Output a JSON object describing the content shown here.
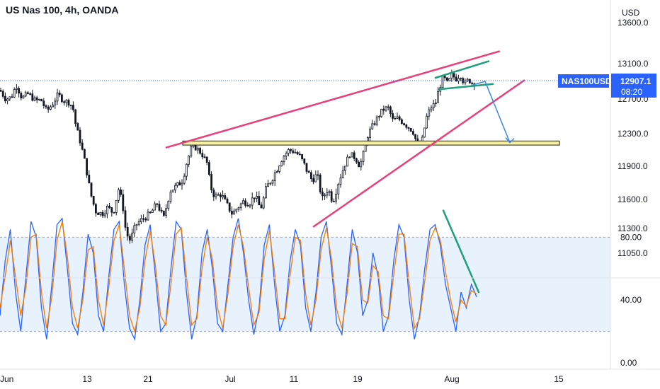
{
  "header": {
    "title": "US Nas 100, 4h, OANDA"
  },
  "colors": {
    "candle": "#131722",
    "trend_line": "#e9407a",
    "flag_line": "#1e9e7a",
    "projection": "#3d85e6",
    "zone_fill": "#f7f0a0",
    "zone_stroke": "#1a1a1a",
    "stoch_k": "#2962ff",
    "stoch_d": "#f57c00",
    "stoch_band": "#e8f2fc",
    "price_tag": "#2962ff",
    "time_tag": "#ffffff"
  },
  "icons": {
    "projection-arrowhead": "chevron-down-icon"
  },
  "price_axis": {
    "currency": "USD",
    "labels": [
      "13600.0",
      "13100.0",
      "12700.0",
      "12300.0",
      "11900.0",
      "11600.0",
      "11300.0",
      "11050.0"
    ]
  },
  "price_tag": {
    "symbol": "NAS100USD",
    "price": "12907.1",
    "countdown": "08:20"
  },
  "stoch_axis": {
    "labels": [
      "80.00",
      "40.00",
      "0.00"
    ]
  },
  "time_axis": {
    "labels": [
      "Jun",
      "13",
      "21",
      "Jul",
      "11",
      "19",
      "Aug",
      "15"
    ]
  },
  "chart_data": [
    {
      "type": "candlestick",
      "title": "US Nas 100, 4h, OANDA",
      "symbol": "NAS100USD",
      "timeframe": "4h",
      "source": "OANDA",
      "y_unit": "USD",
      "ylim": [
        10900,
        13700
      ],
      "y_ticks": [
        11050,
        11300,
        11600,
        11900,
        12300,
        12700,
        13100,
        13600
      ],
      "x_ticks": [
        "Jun",
        "13",
        "21",
        "Jul",
        "11",
        "19",
        "Aug",
        "15"
      ],
      "last_price": 12907.1,
      "close_path": [
        {
          "t": 0,
          "p": 12800
        },
        {
          "t": 8,
          "p": 12700
        },
        {
          "t": 16,
          "p": 12720
        },
        {
          "t": 23,
          "p": 12860
        },
        {
          "t": 31,
          "p": 12710
        },
        {
          "t": 40,
          "p": 12760
        },
        {
          "t": 50,
          "p": 12680
        },
        {
          "t": 58,
          "p": 12690
        },
        {
          "t": 66,
          "p": 12560
        },
        {
          "t": 74,
          "p": 12640
        },
        {
          "t": 82,
          "p": 12750
        },
        {
          "t": 90,
          "p": 12680
        },
        {
          "t": 98,
          "p": 12660
        },
        {
          "t": 103,
          "p": 12600
        },
        {
          "t": 107,
          "p": 12400
        },
        {
          "t": 114,
          "p": 12180
        },
        {
          "t": 120,
          "p": 11950
        },
        {
          "t": 127,
          "p": 11680
        },
        {
          "t": 135,
          "p": 11480
        },
        {
          "t": 144,
          "p": 11450
        },
        {
          "t": 152,
          "p": 11520
        },
        {
          "t": 160,
          "p": 11460
        },
        {
          "t": 167,
          "p": 11700
        },
        {
          "t": 173,
          "p": 11560
        },
        {
          "t": 178,
          "p": 11250
        },
        {
          "t": 184,
          "p": 11180
        },
        {
          "t": 192,
          "p": 11340
        },
        {
          "t": 202,
          "p": 11400
        },
        {
          "t": 212,
          "p": 11450
        },
        {
          "t": 222,
          "p": 11560
        },
        {
          "t": 231,
          "p": 11400
        },
        {
          "t": 240,
          "p": 11680
        },
        {
          "t": 250,
          "p": 11720
        },
        {
          "t": 258,
          "p": 11780
        },
        {
          "t": 265,
          "p": 11980
        },
        {
          "t": 271,
          "p": 12150
        },
        {
          "t": 278,
          "p": 12120
        },
        {
          "t": 285,
          "p": 12050
        },
        {
          "t": 292,
          "p": 11950
        },
        {
          "t": 297,
          "p": 11720
        },
        {
          "t": 304,
          "p": 11620
        },
        {
          "t": 312,
          "p": 11650
        },
        {
          "t": 320,
          "p": 11550
        },
        {
          "t": 328,
          "p": 11450
        },
        {
          "t": 336,
          "p": 11520
        },
        {
          "t": 344,
          "p": 11580
        },
        {
          "t": 352,
          "p": 11560
        },
        {
          "t": 360,
          "p": 11640
        },
        {
          "t": 368,
          "p": 11500
        },
        {
          "t": 376,
          "p": 11700
        },
        {
          "t": 385,
          "p": 11800
        },
        {
          "t": 393,
          "p": 11900
        },
        {
          "t": 400,
          "p": 12020
        },
        {
          "t": 408,
          "p": 12100
        },
        {
          "t": 416,
          "p": 12080
        },
        {
          "t": 424,
          "p": 12020
        },
        {
          "t": 432,
          "p": 11880
        },
        {
          "t": 440,
          "p": 11780
        },
        {
          "t": 448,
          "p": 11820
        },
        {
          "t": 455,
          "p": 11600
        },
        {
          "t": 463,
          "p": 11700
        },
        {
          "t": 470,
          "p": 11580
        },
        {
          "t": 478,
          "p": 11760
        },
        {
          "t": 486,
          "p": 11900
        },
        {
          "t": 494,
          "p": 12050
        },
        {
          "t": 502,
          "p": 12000
        },
        {
          "t": 508,
          "p": 11900
        },
        {
          "t": 514,
          "p": 12080
        },
        {
          "t": 520,
          "p": 12300
        },
        {
          "t": 527,
          "p": 12400
        },
        {
          "t": 534,
          "p": 12500
        },
        {
          "t": 541,
          "p": 12580
        },
        {
          "t": 548,
          "p": 12600
        },
        {
          "t": 555,
          "p": 12450
        },
        {
          "t": 562,
          "p": 12480
        },
        {
          "t": 569,
          "p": 12430
        },
        {
          "t": 576,
          "p": 12380
        },
        {
          "t": 583,
          "p": 12330
        },
        {
          "t": 590,
          "p": 12150
        },
        {
          "t": 596,
          "p": 12220
        },
        {
          "t": 602,
          "p": 12480
        },
        {
          "t": 608,
          "p": 12600
        },
        {
          "t": 615,
          "p": 12650
        },
        {
          "t": 620,
          "p": 12820
        },
        {
          "t": 626,
          "p": 12950
        },
        {
          "t": 632,
          "p": 12870
        },
        {
          "t": 638,
          "p": 12970
        },
        {
          "t": 644,
          "p": 12930
        },
        {
          "t": 650,
          "p": 12980
        },
        {
          "t": 656,
          "p": 12870
        },
        {
          "t": 662,
          "p": 12920
        },
        {
          "t": 668,
          "p": 12870
        },
        {
          "t": 673,
          "p": 12907
        }
      ],
      "annotations": {
        "rising_wedge_upper": [
          [
            235,
            12130
          ],
          [
            705,
            13250
          ]
        ],
        "rising_wedge_lower": [
          [
            443,
            11320
          ],
          [
            740,
            12910
          ]
        ],
        "support_zone": {
          "from_t": 258,
          "to_t": 790,
          "y": [
            12160,
            12210
          ]
        },
        "flag_upper": [
          [
            615,
            12940
          ],
          [
            690,
            13130
          ]
        ],
        "flag_lower": [
          [
            620,
            12810
          ],
          [
            696,
            12870
          ]
        ],
        "projected_path": [
          [
            668,
            12860
          ],
          [
            685,
            12900
          ],
          [
            720,
            12190
          ]
        ]
      }
    },
    {
      "type": "line",
      "title": "Stochastic",
      "ylim": [
        0,
        100
      ],
      "y_ticks": [
        0,
        40,
        80
      ],
      "bands": [
        20,
        80
      ],
      "series": [
        {
          "key": "k",
          "values": [
            30,
            65,
            85,
            45,
            20,
            55,
            90,
            80,
            35,
            15,
            50,
            88,
            92,
            60,
            25,
            18,
            45,
            82,
            70,
            30,
            20,
            55,
            85,
            90,
            50,
            22,
            15,
            40,
            75,
            88,
            55,
            20,
            25,
            60,
            90,
            85,
            45,
            15,
            30,
            70,
            85,
            60,
            25,
            20,
            50,
            80,
            92,
            70,
            40,
            18,
            35,
            75,
            88,
            50,
            20,
            30,
            65,
            85,
            75,
            35,
            20,
            45,
            80,
            90,
            60,
            25,
            18,
            50,
            85,
            70,
            30,
            40,
            70,
            55,
            20,
            30,
            65,
            88,
            80,
            40,
            15,
            30,
            60,
            85,
            88,
            75,
            50,
            35,
            20,
            45,
            35,
            50,
            42
          ]
        },
        {
          "key": "d",
          "values": [
            35,
            55,
            78,
            55,
            30,
            48,
            80,
            82,
            45,
            22,
            42,
            78,
            90,
            68,
            35,
            22,
            40,
            72,
            74,
            40,
            24,
            48,
            78,
            88,
            60,
            30,
            20,
            35,
            65,
            84,
            62,
            30,
            24,
            50,
            82,
            86,
            55,
            24,
            28,
            60,
            80,
            66,
            35,
            22,
            44,
            74,
            88,
            74,
            48,
            24,
            32,
            66,
            84,
            58,
            28,
            28,
            56,
            80,
            78,
            44,
            24,
            40,
            72,
            86,
            66,
            34,
            22,
            44,
            76,
            74,
            40,
            38,
            62,
            58,
            30,
            28,
            56,
            82,
            82,
            50,
            22,
            28,
            52,
            78,
            86,
            78,
            58,
            40,
            26,
            40,
            36,
            46,
            44
          ]
        }
      ],
      "annotations": {
        "divergence_line": [
          [
            626,
            97
          ],
          [
            676,
            45
          ]
        ]
      }
    }
  ]
}
